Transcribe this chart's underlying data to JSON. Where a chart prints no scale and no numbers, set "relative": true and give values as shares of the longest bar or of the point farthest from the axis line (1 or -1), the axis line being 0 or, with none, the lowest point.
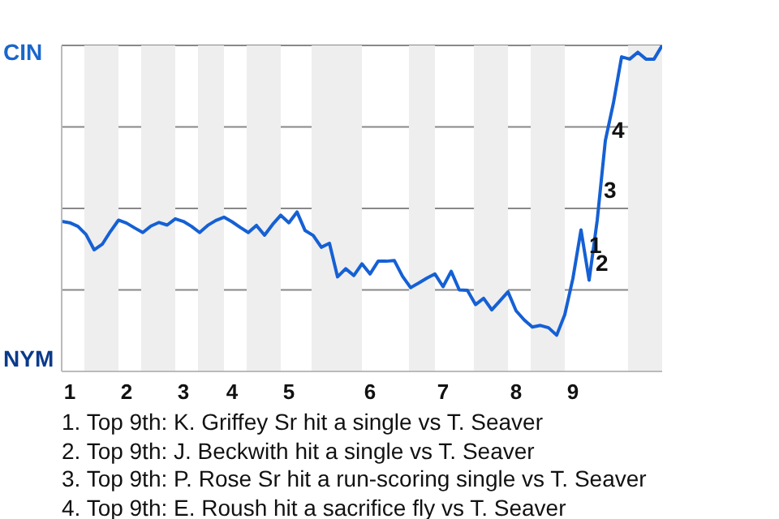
{
  "chart_data": {
    "type": "line",
    "relative": true,
    "categories": [
      null,
      "1",
      null,
      null,
      null,
      null,
      null,
      null,
      "2",
      null,
      null,
      null,
      null,
      null,
      null,
      "3",
      null,
      null,
      null,
      null,
      null,
      "4",
      null,
      null,
      null,
      null,
      null,
      null,
      "5",
      null,
      null,
      null,
      null,
      null,
      null,
      null,
      null,
      null,
      "6",
      null,
      null,
      null,
      null,
      null,
      null,
      null,
      null,
      "7",
      null,
      null,
      null,
      null,
      null,
      null,
      null,
      null,
      "8",
      null,
      null,
      null,
      null,
      null,
      null,
      "9",
      null,
      null,
      null,
      null,
      null,
      null,
      null,
      null,
      null,
      null,
      null
    ],
    "series": [
      {
        "color": "#1560d4",
        "values": [
          0.46,
          0.456,
          0.445,
          0.42,
          0.373,
          0.39,
          0.429,
          0.464,
          0.455,
          0.44,
          0.426,
          0.446,
          0.457,
          0.449,
          0.468,
          0.46,
          0.445,
          0.426,
          0.448,
          0.463,
          0.473,
          0.459,
          0.442,
          0.426,
          0.448,
          0.418,
          0.451,
          0.479,
          0.456,
          0.489,
          0.432,
          0.417,
          0.381,
          0.393,
          0.29,
          0.315,
          0.294,
          0.33,
          0.299,
          0.338,
          0.338,
          0.34,
          0.292,
          0.257,
          0.271,
          0.286,
          0.299,
          0.26,
          0.307,
          0.25,
          0.249,
          0.205,
          0.224,
          0.189,
          0.216,
          0.244,
          0.186,
          0.158,
          0.136,
          0.141,
          0.134,
          0.111,
          0.174,
          0.285,
          0.434,
          0.28,
          0.464,
          0.708,
          0.824,
          0.965,
          0.958,
          0.979,
          0.958,
          0.958,
          1
        ]
      }
    ],
    "grid": "y",
    "marker": "none",
    "annotations": [
      "CIN",
      "NYM",
      {
        "text": "1",
        "y": 0.434
      },
      "2",
      "3",
      "4",
      "1. Top 9th: K. Griffey Sr hit a single vs T. Seaver",
      "2. Top 9th: J. Beckwith hit a single vs T. Seaver",
      "3. Top 9th: P. Rose Sr hit a run-scoring single vs T. Seaver",
      "4. Top 9th: E. Roush hit a sacrifice fly vs T. Seaver"
    ]
  }
}
